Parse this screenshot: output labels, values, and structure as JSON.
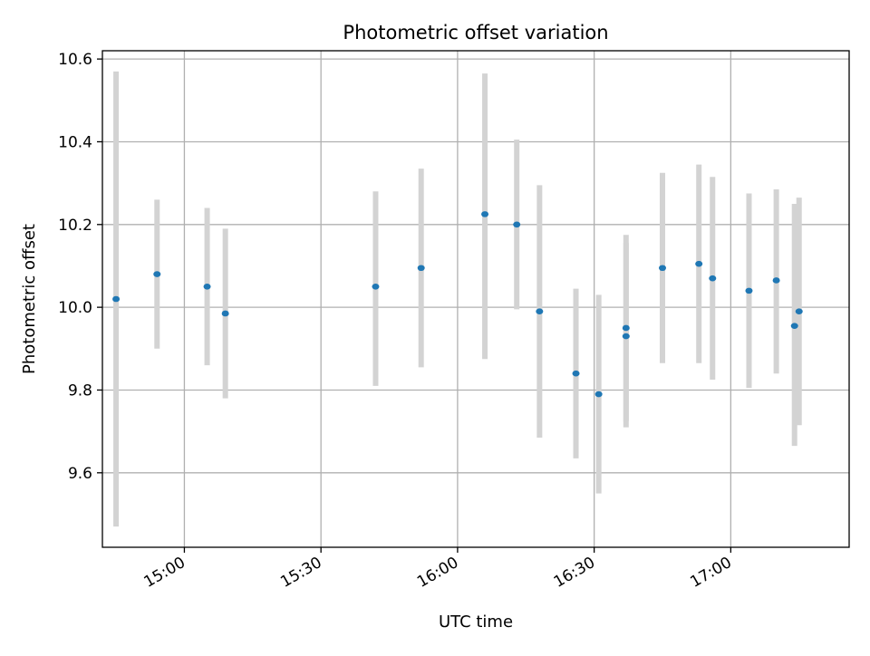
{
  "chart_data": {
    "type": "scatter",
    "title": "Photometric offset variation",
    "xlabel": "UTC time",
    "ylabel": "Photometric offset",
    "xlim": [
      "14:42",
      "17:26"
    ],
    "ylim": [
      9.42,
      10.62
    ],
    "x_ticks": [
      "15:00",
      "15:30",
      "16:00",
      "16:30",
      "17:00"
    ],
    "y_ticks": [
      9.6,
      9.8,
      10.0,
      10.2,
      10.4,
      10.6
    ],
    "y_tick_labels": [
      "9.6",
      "9.8",
      "10.0",
      "10.2",
      "10.4",
      "10.6"
    ],
    "grid": true,
    "series": [
      {
        "marker_color": "#1f77b4",
        "errorbar_color": "#d3d3d3",
        "points": [
          {
            "x": "14:45",
            "y": 10.02,
            "ylow": 9.47,
            "yhigh": 10.57
          },
          {
            "x": "14:54",
            "y": 10.08,
            "ylow": 9.9,
            "yhigh": 10.26
          },
          {
            "x": "15:05",
            "y": 10.05,
            "ylow": 9.86,
            "yhigh": 10.24
          },
          {
            "x": "15:09",
            "y": 9.985,
            "ylow": 9.78,
            "yhigh": 10.19
          },
          {
            "x": "15:42",
            "y": 10.05,
            "ylow": 9.81,
            "yhigh": 10.28
          },
          {
            "x": "15:52",
            "y": 10.095,
            "ylow": 9.855,
            "yhigh": 10.335
          },
          {
            "x": "16:06",
            "y": 10.225,
            "ylow": 9.875,
            "yhigh": 10.565
          },
          {
            "x": "16:13",
            "y": 10.2,
            "ylow": 9.995,
            "yhigh": 10.405
          },
          {
            "x": "16:18",
            "y": 9.99,
            "ylow": 9.685,
            "yhigh": 10.295
          },
          {
            "x": "16:26",
            "y": 9.84,
            "ylow": 9.635,
            "yhigh": 10.045
          },
          {
            "x": "16:31",
            "y": 9.79,
            "ylow": 9.55,
            "yhigh": 10.03
          },
          {
            "x": "16:37",
            "y": 9.95,
            "ylow": 9.725,
            "yhigh": 10.175
          },
          {
            "x": "16:37",
            "y": 9.93,
            "ylow": 9.71,
            "yhigh": 10.155
          },
          {
            "x": "16:45",
            "y": 10.095,
            "ylow": 9.865,
            "yhigh": 10.325
          },
          {
            "x": "16:53",
            "y": 10.105,
            "ylow": 9.865,
            "yhigh": 10.345
          },
          {
            "x": "16:56",
            "y": 10.07,
            "ylow": 9.825,
            "yhigh": 10.315
          },
          {
            "x": "17:04",
            "y": 10.04,
            "ylow": 9.805,
            "yhigh": 10.275
          },
          {
            "x": "17:10",
            "y": 10.065,
            "ylow": 9.84,
            "yhigh": 10.285
          },
          {
            "x": "17:14",
            "y": 9.955,
            "ylow": 9.665,
            "yhigh": 10.25
          },
          {
            "x": "17:15",
            "y": 9.99,
            "ylow": 9.715,
            "yhigh": 10.265
          }
        ]
      }
    ]
  }
}
